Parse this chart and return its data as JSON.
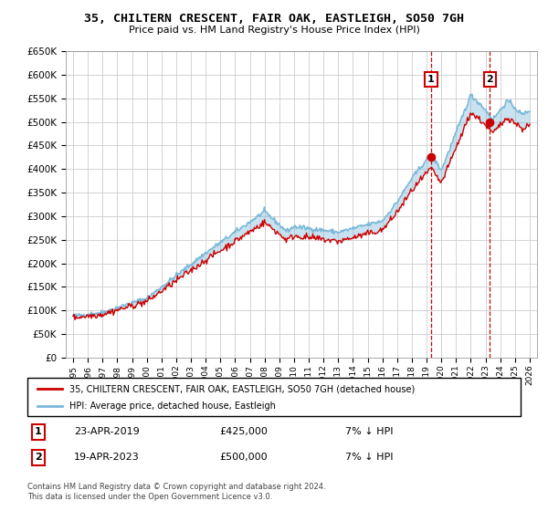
{
  "title": "35, CHILTERN CRESCENT, FAIR OAK, EASTLEIGH, SO50 7GH",
  "subtitle": "Price paid vs. HM Land Registry's House Price Index (HPI)",
  "legend_entry1": "35, CHILTERN CRESCENT, FAIR OAK, EASTLEIGH, SO50 7GH (detached house)",
  "legend_entry2": "HPI: Average price, detached house, Eastleigh",
  "annotation1_label": "1",
  "annotation1_date": "23-APR-2019",
  "annotation1_price": "£425,000",
  "annotation1_hpi": "7% ↓ HPI",
  "annotation2_label": "2",
  "annotation2_date": "19-APR-2023",
  "annotation2_price": "£500,000",
  "annotation2_hpi": "7% ↓ HPI",
  "footnote": "Contains HM Land Registry data © Crown copyright and database right 2024.\nThis data is licensed under the Open Government Licence v3.0.",
  "hpi_color": "#7ab8d9",
  "price_color": "#cc0000",
  "vline_color": "#cc0000",
  "ylim": [
    0,
    650000
  ],
  "yticks": [
    0,
    50000,
    100000,
    150000,
    200000,
    250000,
    300000,
    350000,
    400000,
    450000,
    500000,
    550000,
    600000,
    650000
  ],
  "sale1_x": 2019.3,
  "sale1_y": 425000,
  "sale2_x": 2023.3,
  "sale2_y": 500000,
  "xmin": 1995,
  "xmax": 2026
}
